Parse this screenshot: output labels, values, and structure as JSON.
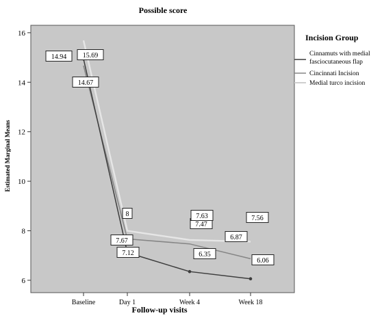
{
  "chart_data": {
    "type": "line",
    "title": "Possible score",
    "xlabel": "Follow-up visits",
    "ylabel": "Estimated Marginal Means",
    "categories": [
      "Baseline",
      "Day 1",
      "Week 4",
      "Week 18"
    ],
    "yticks": [
      6,
      8,
      10,
      12,
      14,
      16
    ],
    "ylim": [
      5.5,
      16.3
    ],
    "grid": false,
    "legend": {
      "title": "Incision Group",
      "placement": "right"
    },
    "series": [
      {
        "name": "Cinnamuts with medial fasciocutaneous flap",
        "values": [
          14.94,
          7.12,
          6.35,
          6.06
        ],
        "labels": [
          "14.94",
          "7.12",
          "6.35",
          "6.06"
        ],
        "color": "#3d3d3d",
        "marker": true
      },
      {
        "name": "Cincinnati Incision",
        "values": [
          14.67,
          7.67,
          7.47,
          6.87
        ],
        "labels": [
          "14.67",
          "7.67",
          "7.47",
          "6.87"
        ],
        "color": "#858585",
        "marker": false
      },
      {
        "name": "Medial turco incision",
        "values": [
          15.69,
          8.0,
          7.63,
          7.56
        ],
        "labels": [
          "15.69",
          "8",
          "7.63",
          "7.56"
        ],
        "color": "#e6e6e6",
        "marker": false
      }
    ]
  }
}
